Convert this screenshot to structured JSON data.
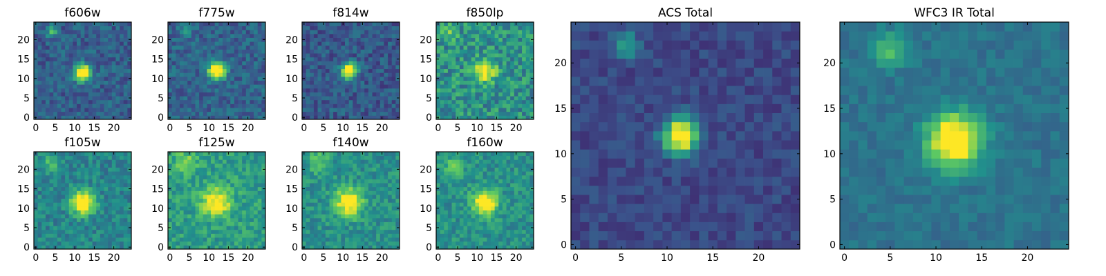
{
  "figure": {
    "colormap": "viridis",
    "colors": [
      "#440154",
      "#3b528b",
      "#21918c",
      "#5ec962",
      "#fde725"
    ]
  },
  "chart_data": [
    {
      "type": "heatmap",
      "title": "f606w",
      "image_shape": [
        25,
        25
      ],
      "origin": "lower",
      "xlim": [
        0,
        24
      ],
      "ylim": [
        0,
        24
      ],
      "xticks": [
        0,
        5,
        10,
        15,
        20
      ],
      "yticks": [
        0,
        5,
        10,
        15,
        20
      ],
      "source": {
        "x": 12,
        "y": 11.5,
        "peak": 1.0,
        "sigma": 1.5
      },
      "secondary_sources": [
        {
          "x": 4,
          "y": 22,
          "peak": 0.35,
          "sigma": 1.0
        }
      ],
      "background_level": 0.3,
      "noise_level": 0.12
    },
    {
      "type": "heatmap",
      "title": "f775w",
      "image_shape": [
        25,
        25
      ],
      "origin": "lower",
      "xlim": [
        0,
        24
      ],
      "ylim": [
        0,
        24
      ],
      "xticks": [
        0,
        5,
        10,
        15,
        20
      ],
      "yticks": [
        0,
        5,
        10,
        15,
        20
      ],
      "source": {
        "x": 12,
        "y": 12,
        "peak": 1.0,
        "sigma": 1.5
      },
      "secondary_sources": [
        {
          "x": 4,
          "y": 22,
          "peak": 0.25,
          "sigma": 1.0
        }
      ],
      "background_level": 0.32,
      "noise_level": 0.12
    },
    {
      "type": "heatmap",
      "title": "f814w",
      "image_shape": [
        25,
        25
      ],
      "origin": "lower",
      "xlim": [
        0,
        24
      ],
      "ylim": [
        0,
        24
      ],
      "xticks": [
        0,
        5,
        10,
        15,
        20
      ],
      "yticks": [
        0,
        5,
        10,
        15,
        20
      ],
      "source": {
        "x": 11.5,
        "y": 12,
        "peak": 0.95,
        "sigma": 1.4
      },
      "secondary_sources": [],
      "background_level": 0.28,
      "noise_level": 0.12
    },
    {
      "type": "heatmap",
      "title": "f850lp",
      "image_shape": [
        25,
        25
      ],
      "origin": "lower",
      "xlim": [
        0,
        24
      ],
      "ylim": [
        0,
        24
      ],
      "xticks": [
        0,
        5,
        10,
        15,
        20
      ],
      "yticks": [
        0,
        5,
        10,
        15,
        20
      ],
      "source": {
        "x": 12,
        "y": 12,
        "peak": 0.55,
        "sigma": 2.0
      },
      "secondary_sources": [
        {
          "x": 3,
          "y": 22,
          "peak": 0.2,
          "sigma": 1.5
        }
      ],
      "background_level": 0.5,
      "noise_level": 0.18
    },
    {
      "type": "heatmap",
      "title": "f105w",
      "image_shape": [
        25,
        25
      ],
      "origin": "lower",
      "xlim": [
        0,
        24
      ],
      "ylim": [
        0,
        24
      ],
      "xticks": [
        0,
        5,
        10,
        15,
        20
      ],
      "yticks": [
        0,
        5,
        10,
        15,
        20
      ],
      "source": {
        "x": 12,
        "y": 11.5,
        "peak": 0.8,
        "sigma": 2.0
      },
      "secondary_sources": [
        {
          "x": 4,
          "y": 22,
          "peak": 0.25,
          "sigma": 1.5
        }
      ],
      "background_level": 0.45,
      "noise_level": 0.12
    },
    {
      "type": "heatmap",
      "title": "f125w",
      "image_shape": [
        25,
        25
      ],
      "origin": "lower",
      "xlim": [
        0,
        24
      ],
      "ylim": [
        0,
        24
      ],
      "xticks": [
        0,
        5,
        10,
        15,
        20
      ],
      "yticks": [
        0,
        5,
        10,
        15,
        20
      ],
      "source": {
        "x": 12,
        "y": 11.5,
        "peak": 0.55,
        "sigma": 2.5
      },
      "secondary_sources": [
        {
          "x": 4,
          "y": 22,
          "peak": 0.25,
          "sigma": 2.0
        }
      ],
      "background_level": 0.55,
      "noise_level": 0.13
    },
    {
      "type": "heatmap",
      "title": "f140w",
      "image_shape": [
        25,
        25
      ],
      "origin": "lower",
      "xlim": [
        0,
        24
      ],
      "ylim": [
        0,
        24
      ],
      "xticks": [
        0,
        5,
        10,
        15,
        20
      ],
      "yticks": [
        0,
        5,
        10,
        15,
        20
      ],
      "source": {
        "x": 11.5,
        "y": 11.5,
        "peak": 0.6,
        "sigma": 2.5
      },
      "secondary_sources": [
        {
          "x": 4,
          "y": 22,
          "peak": 0.25,
          "sigma": 2.0
        }
      ],
      "background_level": 0.5,
      "noise_level": 0.12
    },
    {
      "type": "heatmap",
      "title": "f160w",
      "image_shape": [
        25,
        25
      ],
      "origin": "lower",
      "xlim": [
        0,
        24
      ],
      "ylim": [
        0,
        24
      ],
      "xticks": [
        0,
        5,
        10,
        15,
        20
      ],
      "yticks": [
        0,
        5,
        10,
        15,
        20
      ],
      "source": {
        "x": 12,
        "y": 11.5,
        "peak": 0.65,
        "sigma": 2.2
      },
      "secondary_sources": [
        {
          "x": 4,
          "y": 21,
          "peak": 0.2,
          "sigma": 2.0
        }
      ],
      "background_level": 0.5,
      "noise_level": 0.12
    },
    {
      "type": "heatmap",
      "title": "ACS Total",
      "image_shape": [
        25,
        25
      ],
      "origin": "lower",
      "xlim": [
        0,
        24
      ],
      "ylim": [
        0,
        24
      ],
      "xticks": [
        0,
        5,
        10,
        15,
        20
      ],
      "yticks": [
        0,
        5,
        10,
        15,
        20
      ],
      "source": {
        "x": 11.5,
        "y": 12,
        "peak": 1.0,
        "sigma": 1.3
      },
      "secondary_sources": [
        {
          "x": 5.5,
          "y": 22,
          "peak": 0.35,
          "sigma": 1.0
        }
      ],
      "background_level": 0.22,
      "noise_level": 0.07
    },
    {
      "type": "heatmap",
      "title": "WFC3 IR Total",
      "image_shape": [
        25,
        25
      ],
      "origin": "lower",
      "xlim": [
        0,
        24
      ],
      "ylim": [
        0,
        24
      ],
      "xticks": [
        0,
        5,
        10,
        15,
        20
      ],
      "yticks": [
        0,
        5,
        10,
        15,
        20
      ],
      "source": {
        "x": 12,
        "y": 11.5,
        "peak": 0.85,
        "sigma": 2.0
      },
      "secondary_sources": [
        {
          "x": 5,
          "y": 21.5,
          "peak": 0.3,
          "sigma": 1.3
        }
      ],
      "background_level": 0.38,
      "noise_level": 0.06
    }
  ]
}
